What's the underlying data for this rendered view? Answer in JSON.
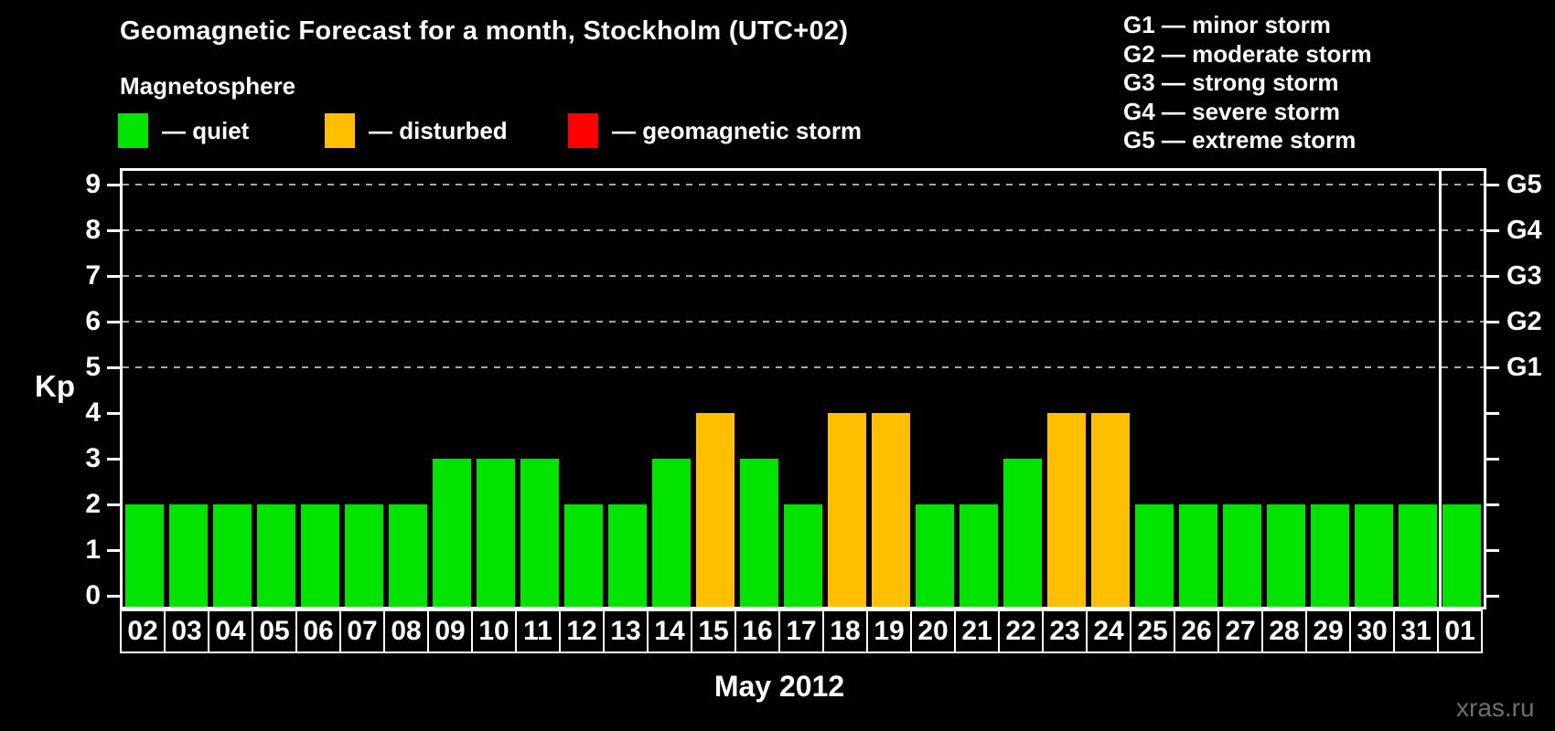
{
  "header": {
    "title": "Geomagnetic Forecast for a month, Stockholm (UTC+02)",
    "subtitle": "Magnetosphere"
  },
  "legend": {
    "items": [
      {
        "key": "quiet",
        "label": "— quiet",
        "color": "#00e400"
      },
      {
        "key": "disturbed",
        "label": "— disturbed",
        "color": "#ffbe00"
      },
      {
        "key": "storm",
        "label": "— geomagnetic storm",
        "color": "#ff0000"
      }
    ]
  },
  "g_legend": {
    "lines": [
      "G1 — minor storm",
      "G2 — moderate storm",
      "G3 — strong storm",
      "G4 — severe storm",
      "G5 — extreme storm"
    ]
  },
  "watermark": "xras.ru",
  "chart_data": {
    "type": "bar",
    "title": "Geomagnetic Forecast for a month, Stockholm (UTC+02)",
    "xlabel": "May 2012",
    "ylabel": "Kp",
    "ylim": [
      0,
      9
    ],
    "y_ticks": [
      0,
      1,
      2,
      3,
      4,
      5,
      6,
      7,
      8,
      9
    ],
    "grid": {
      "horizontal_dashed_at": [
        5,
        6,
        7,
        8,
        9
      ]
    },
    "right_axis": {
      "labels": [
        {
          "kp": 5,
          "label": "G1"
        },
        {
          "kp": 6,
          "label": "G2"
        },
        {
          "kp": 7,
          "label": "G3"
        },
        {
          "kp": 8,
          "label": "G4"
        },
        {
          "kp": 9,
          "label": "G5"
        }
      ]
    },
    "categories": [
      "02",
      "03",
      "04",
      "05",
      "06",
      "07",
      "08",
      "09",
      "10",
      "11",
      "12",
      "13",
      "14",
      "15",
      "16",
      "17",
      "18",
      "19",
      "20",
      "21",
      "22",
      "23",
      "24",
      "25",
      "26",
      "27",
      "28",
      "29",
      "30",
      "31",
      "01"
    ],
    "values": [
      2,
      2,
      2,
      2,
      2,
      2,
      2,
      3,
      3,
      3,
      2,
      2,
      3,
      4,
      3,
      2,
      4,
      4,
      2,
      2,
      3,
      4,
      4,
      2,
      2,
      2,
      2,
      2,
      2,
      2,
      2
    ],
    "statuses": [
      "quiet",
      "quiet",
      "quiet",
      "quiet",
      "quiet",
      "quiet",
      "quiet",
      "quiet",
      "quiet",
      "quiet",
      "quiet",
      "quiet",
      "quiet",
      "disturbed",
      "quiet",
      "quiet",
      "disturbed",
      "disturbed",
      "quiet",
      "quiet",
      "quiet",
      "disturbed",
      "disturbed",
      "quiet",
      "quiet",
      "quiet",
      "quiet",
      "quiet",
      "quiet",
      "quiet",
      "quiet"
    ],
    "month_separator_before_index": 30,
    "colors": {
      "quiet": "#00e400",
      "disturbed": "#ffbe00",
      "storm": "#ff0000"
    },
    "legend_position": "top-left"
  }
}
